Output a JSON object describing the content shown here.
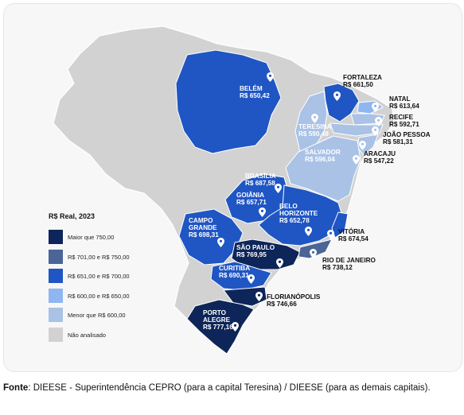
{
  "colors": {
    "maior_750": "#0d2558",
    "faixa_701_750": "#4a6596",
    "faixa_651_700": "#1f56c4",
    "faixa_600_650": "#8fb6f0",
    "menor_600": "#a9c2e6",
    "nao_analisado": "#d2d2d2"
  },
  "legend": {
    "title": "R$ Real, 2023",
    "items": [
      {
        "label": "Maior que 750,00",
        "color": "#0d2558"
      },
      {
        "label": "R$ 701,00 e R$ 750,00",
        "color": "#4a6596"
      },
      {
        "label": "R$ 651,00 e R$ 700,00",
        "color": "#1f56c4"
      },
      {
        "label": "R$ 600,00 e R$ 650,00",
        "color": "#8fb6f0"
      },
      {
        "label": "Menor que R$ 600,00",
        "color": "#a9c2e6"
      },
      {
        "label": "Não analisado",
        "color": "#d2d2d2"
      }
    ]
  },
  "cities": [
    {
      "name": "BELÉM",
      "value": "R$ 650,42"
    },
    {
      "name": "FORTALEZA",
      "value": "R$ 661,50"
    },
    {
      "name": "NATAL",
      "value": "R$ 613,64"
    },
    {
      "name": "RECIFE",
      "value": "R$ 592,71"
    },
    {
      "name": "JOÃO PESSOA",
      "value": "R$ 581,31"
    },
    {
      "name": "TERESINA",
      "value": "R$ 590,48"
    },
    {
      "name": "ARACAJU",
      "value": "R$ 547,22"
    },
    {
      "name": "SALVADOR",
      "value": "R$ 596,04"
    },
    {
      "name": "BRASÍLIA",
      "value": "R$ 687,58"
    },
    {
      "name": "GOIÂNIA",
      "value": "R$ 657,71"
    },
    {
      "name": "BELO HORIZONTE",
      "value": "R$ 652,78"
    },
    {
      "name": "CAMPO GRANDE",
      "value": "R$ 698,31"
    },
    {
      "name": "VITÓRIA",
      "value": "R$ 674,54"
    },
    {
      "name": "SÃO PAULO",
      "value": "R$ 769,95"
    },
    {
      "name": "RIO DE JANEIRO",
      "value": "R$ 738,12"
    },
    {
      "name": "CURITIBA",
      "value": "R$ 690,31"
    },
    {
      "name": "FLORIANÓPOLIS",
      "value": "R$ 746,66"
    },
    {
      "name": "PORTO ALEGRE",
      "value": "R$ 777,16"
    }
  ],
  "source": {
    "label": "Fonte",
    "text": ": DIEESE - Superintendência CEPRO (para a capital Teresina) / DIEESE (para as demais capitais)."
  }
}
